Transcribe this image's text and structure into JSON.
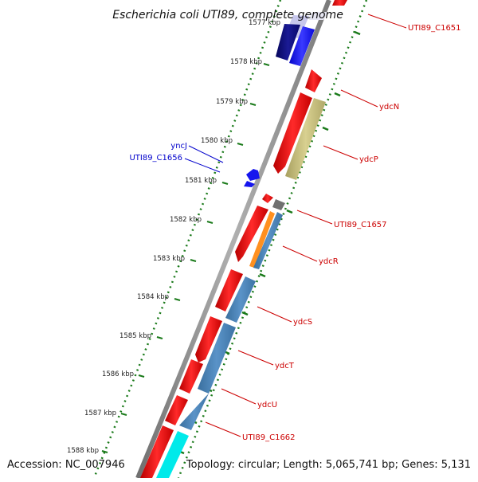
{
  "title": "Escherichia coli UTI89, complete genome",
  "accession": "Accession: NC_007946",
  "summary": "Topology: circular; Length: 5,065,741 bp; Genes: 5,131",
  "colors": {
    "backbone": "#8c8c8c",
    "tick_green": "#1a7a1a",
    "forward_gene": "#ee1111",
    "reverse_gene": "#4682b4",
    "navy": "#0a0a78",
    "blue": "#1515ee",
    "khaki": "#c8c078",
    "orange": "#ff9020",
    "gray_gene": "#707070",
    "cyan": "#00eaea",
    "label_red": "#cc0000",
    "label_blue": "#0000cc"
  },
  "scale": {
    "partial_tick_label": "1577 kbp",
    "tick_labels": [
      "1578 kbp",
      "1579 kbp",
      "1580 kbp",
      "1581 kbp",
      "1582 kbp",
      "1583 kbp",
      "1584 kbp",
      "1585 kbp",
      "1586 kbp",
      "1587 kbp",
      "1588 kbp"
    ]
  },
  "gene_labels": {
    "utI89_c1651": "UTI89_C1651",
    "ydcN": "ydcN",
    "ydcP": "ydcP",
    "yncJ": "yncJ",
    "utI89_c1656": "UTI89_C1656",
    "utI89_c1657": "UTI89_C1657",
    "ydcR": "ydcR",
    "ydcS": "ydcS",
    "ydcT": "ydcT",
    "ydcU": "ydcU",
    "utI89_c1662": "UTI89_C1662"
  }
}
